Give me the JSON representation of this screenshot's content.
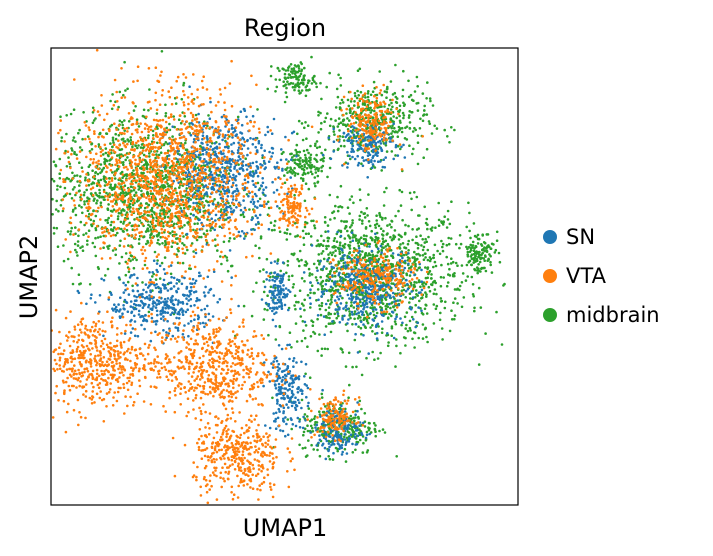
{
  "chart_data": {
    "type": "scatter",
    "title": "Region",
    "xlabel": "UMAP1",
    "ylabel": "UMAP2",
    "ticks": "none",
    "grid": false,
    "legend_placement": "right",
    "series": [
      {
        "name": "SN",
        "color": "#1f77b4",
        "clusters": [
          {
            "x": 3.9,
            "y": 7.7,
            "rx": 1.4,
            "ry": 1.4
          },
          {
            "x": 7.1,
            "y": 5.0,
            "rx": 1.3,
            "ry": 1.0
          },
          {
            "x": 2.5,
            "y": 4.6,
            "rx": 1.4,
            "ry": 0.8
          },
          {
            "x": 5.3,
            "y": 2.6,
            "rx": 0.5,
            "ry": 1.0
          },
          {
            "x": 6.5,
            "y": 1.7,
            "rx": 0.6,
            "ry": 0.6
          },
          {
            "x": 5.1,
            "y": 4.9,
            "rx": 0.3,
            "ry": 0.6
          },
          {
            "x": 7.1,
            "y": 8.3,
            "rx": 0.7,
            "ry": 0.6
          }
        ]
      },
      {
        "name": "VTA",
        "color": "#ff7f0e",
        "clusters": [
          {
            "x": 2.6,
            "y": 7.5,
            "rx": 2.2,
            "ry": 2.2
          },
          {
            "x": 1.0,
            "y": 3.3,
            "rx": 1.4,
            "ry": 1.2
          },
          {
            "x": 3.6,
            "y": 3.2,
            "rx": 1.5,
            "ry": 1.2
          },
          {
            "x": 4.2,
            "y": 1.1,
            "rx": 1.1,
            "ry": 1.1
          },
          {
            "x": 5.4,
            "y": 6.9,
            "rx": 0.4,
            "ry": 0.5
          },
          {
            "x": 6.4,
            "y": 2.0,
            "rx": 0.5,
            "ry": 0.5
          },
          {
            "x": 7.2,
            "y": 8.8,
            "rx": 0.6,
            "ry": 0.8
          },
          {
            "x": 7.3,
            "y": 5.2,
            "rx": 1.0,
            "ry": 0.7
          }
        ]
      },
      {
        "name": "midbrain",
        "color": "#2ca02c",
        "clusters": [
          {
            "x": 7.2,
            "y": 5.3,
            "rx": 2.4,
            "ry": 1.8
          },
          {
            "x": 7.2,
            "y": 8.8,
            "rx": 1.4,
            "ry": 1.0
          },
          {
            "x": 6.5,
            "y": 1.8,
            "rx": 1.0,
            "ry": 0.7
          },
          {
            "x": 9.6,
            "y": 5.8,
            "rx": 0.4,
            "ry": 0.6
          },
          {
            "x": 5.5,
            "y": 9.8,
            "rx": 0.5,
            "ry": 0.4
          },
          {
            "x": 2.1,
            "y": 7.2,
            "rx": 2.4,
            "ry": 2.0
          },
          {
            "x": 5.7,
            "y": 7.8,
            "rx": 0.5,
            "ry": 0.5
          }
        ]
      }
    ]
  }
}
